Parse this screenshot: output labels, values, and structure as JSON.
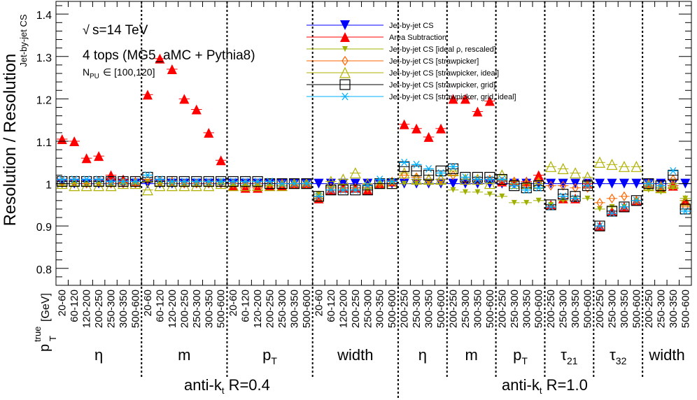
{
  "chart_data": {
    "type": "scatter",
    "ylabel": "Resolution / Resolution",
    "ylabel_sub": "Jet-by-jet CS",
    "xlabel_main": "p",
    "xlabel_sub": "T",
    "xlabel_sup": "true",
    "xlabel_unit": "[GeV]",
    "ylim": [
      0.76,
      1.43
    ],
    "yticks": [
      0.8,
      0.9,
      1,
      1.1,
      1.2,
      1.3,
      1.4
    ],
    "ytick_labels": [
      "0.8",
      "0.9",
      "1",
      "1.1",
      "1.2",
      "1.3",
      "1.4"
    ],
    "bins_r04": [
      "20-60",
      "60-120",
      "120-200",
      "200-250",
      "250-300",
      "300-350",
      "500-600"
    ],
    "bins_r10": [
      "200-250",
      "250-300",
      "300-350",
      "500-600"
    ],
    "sections": [
      {
        "label": "η",
        "sub": "",
        "radius": "0.4"
      },
      {
        "label": "m",
        "sub": "",
        "radius": "0.4"
      },
      {
        "label": "p",
        "sub": "T",
        "radius": "0.4"
      },
      {
        "label": "width",
        "sub": "",
        "radius": "0.4"
      },
      {
        "label": "η",
        "sub": "",
        "radius": "1.0"
      },
      {
        "label": "m",
        "sub": "",
        "radius": "1.0"
      },
      {
        "label": "p",
        "sub": "T",
        "radius": "1.0"
      },
      {
        "label": "τ",
        "sub": "21",
        "radius": "1.0"
      },
      {
        "label": "τ",
        "sub": "32",
        "radius": "1.0"
      },
      {
        "label": "width",
        "sub": "",
        "radius": "1.0"
      }
    ],
    "groups": [
      {
        "label": "anti-k",
        "sub": "t",
        "rest": " R=0.4"
      },
      {
        "label": "anti-k",
        "sub": "t",
        "rest": " R=1.0"
      }
    ],
    "annotations": {
      "energy": "s=14 TeV",
      "sqrt_symbol": "√",
      "process": "4 tops (MG5_aMC + Pythia8)",
      "pileup_label": "N",
      "pileup_sub": "PU",
      "pileup_range": " ∈ [100,120]"
    },
    "series": [
      {
        "name": "Jet-by-jet CS",
        "color": "#0000ff",
        "marker": "triangle-down",
        "values": [
          1.0,
          1.0,
          1.0,
          1.0,
          1.0,
          1.0,
          1.0,
          1.0,
          1.0,
          1.0,
          1.0,
          1.0,
          1.0,
          1.0,
          1.0,
          1.0,
          1.0,
          1.0,
          1.0,
          1.0,
          1.0,
          1.0,
          1.0,
          1.0,
          1.0,
          1.0,
          1.0,
          1.0,
          1.0,
          1.0,
          1.0,
          1.0,
          1.0,
          1.0,
          1.0,
          1.0,
          1.0,
          1.0,
          1.0,
          1.0,
          1.0,
          1.0,
          1.0,
          1.0,
          1.0,
          1.0,
          1.0,
          1.0,
          1.0,
          1.0,
          1.0,
          1.0
        ]
      },
      {
        "name": "Area Subtraction",
        "color": "#ff0000",
        "marker": "triangle-up",
        "values": [
          1.105,
          1.1,
          1.06,
          1.065,
          1.02,
          1.01,
          1.005,
          1.21,
          1.295,
          1.27,
          1.2,
          1.175,
          1.12,
          1.055,
          0.995,
          0.99,
          0.99,
          0.995,
          0.995,
          1.0,
          1.0,
          0.965,
          0.985,
          0.99,
          0.99,
          0.985,
          1.0,
          1.005,
          1.14,
          1.13,
          1.11,
          1.13,
          1.2,
          1.2,
          1.17,
          1.195,
          1.005,
          1.005,
          1.005,
          1.02,
          0.95,
          0.965,
          0.965,
          1.0,
          0.9,
          0.935,
          0.945,
          0.96,
          1.0,
          0.99,
          0.995,
          0.96
        ]
      },
      {
        "name": "Jet-by-jet CS [ideal ρ, rescaled]",
        "color": "#a0b000",
        "marker": "triangle-down-small",
        "values": [
          0.995,
          1.0,
          1.0,
          1.0,
          1.0,
          1.0,
          1.0,
          1.005,
          1.0,
          1.0,
          1.0,
          1.0,
          1.0,
          1.0,
          0.995,
          0.995,
          0.995,
          0.995,
          0.995,
          1.0,
          1.0,
          0.975,
          0.985,
          0.985,
          0.985,
          0.985,
          1.0,
          1.0,
          1.0,
          1.0,
          1.0,
          1.0,
          0.985,
          0.98,
          0.98,
          0.975,
          0.97,
          0.955,
          0.955,
          0.96,
          0.95,
          0.96,
          0.965,
          0.965,
          0.94,
          0.945,
          0.945,
          0.96,
          0.985,
          0.98,
          0.99,
          0.965
        ]
      },
      {
        "name": "Jet-by-jet CS [strawpicker]",
        "color": "#ff6600",
        "marker": "diamond-open",
        "values": [
          1.005,
          1.005,
          1.0,
          1.005,
          1.0,
          1.0,
          1.0,
          1.01,
          1.005,
          1.005,
          1.0,
          1.0,
          1.0,
          1.0,
          1.0,
          1.0,
          1.0,
          1.0,
          1.0,
          1.0,
          1.0,
          0.97,
          0.99,
          0.99,
          0.99,
          0.99,
          1.0,
          1.005,
          1.02,
          1.015,
          1.01,
          1.01,
          1.02,
          1.01,
          1.01,
          1.01,
          1.005,
          1.005,
          1.0,
          1.005,
          0.995,
          0.995,
          0.99,
          0.99,
          0.955,
          0.965,
          0.97,
          0.96,
          1.0,
          0.995,
          1.01,
          0.945
        ]
      },
      {
        "name": "Jet-by-jet CS [strawpicker, ideal]",
        "color": "#b0b000",
        "marker": "triangle-up-open",
        "values": [
          1.0,
          0.995,
          0.995,
          0.995,
          0.995,
          1.0,
          1.0,
          0.985,
          0.995,
          0.995,
          0.995,
          0.995,
          0.995,
          1.0,
          0.995,
          0.995,
          0.995,
          0.995,
          0.995,
          1.0,
          1.0,
          0.97,
          1.005,
          1.01,
          1.025,
          1.0,
          1.0,
          1.0,
          1.025,
          1.01,
          1.01,
          1.01,
          1.03,
          1.01,
          1.01,
          1.0,
          1.02,
          1.0,
          1.0,
          1.0,
          1.04,
          1.035,
          1.025,
          1.015,
          1.05,
          1.045,
          1.04,
          1.04,
          0.995,
          0.99,
          1.0,
          0.96
        ]
      },
      {
        "name": "Jet-by-jet CS [strawpicker, grid]",
        "color": "#000000",
        "marker": "square-open",
        "values": [
          1.005,
          1.005,
          1.005,
          1.005,
          1.005,
          1.005,
          1.005,
          1.015,
          1.005,
          1.005,
          1.005,
          1.005,
          1.005,
          1.005,
          1.005,
          1.005,
          1.005,
          1.0,
          1.0,
          1.0,
          1.0,
          0.97,
          0.985,
          0.985,
          0.985,
          0.985,
          1.0,
          1.0,
          1.04,
          1.03,
          1.02,
          1.03,
          1.035,
          1.015,
          1.015,
          1.015,
          1.01,
          0.995,
          0.99,
          0.995,
          0.95,
          0.975,
          0.97,
          0.995,
          0.9,
          0.935,
          0.945,
          0.96,
          1.0,
          0.995,
          1.02,
          0.94
        ]
      },
      {
        "name": "Jet-by-jet CS [strawpicker, grid, ideal]",
        "color": "#00b0ff",
        "marker": "star",
        "values": [
          1.01,
          1.01,
          1.01,
          1.01,
          1.005,
          1.005,
          1.005,
          1.02,
          1.01,
          1.005,
          1.005,
          1.005,
          1.005,
          1.005,
          1.005,
          1.005,
          1.005,
          1.005,
          1.0,
          1.0,
          1.0,
          0.97,
          0.985,
          0.985,
          0.985,
          0.995,
          1.01,
          1.005,
          1.05,
          1.045,
          1.035,
          1.025,
          1.04,
          1.015,
          1.01,
          1.01,
          1.01,
          0.995,
          0.985,
          0.99,
          0.945,
          0.97,
          0.965,
          0.995,
          0.9,
          0.93,
          0.945,
          0.96,
          1.0,
          0.995,
          1.03,
          0.935
        ]
      }
    ]
  }
}
